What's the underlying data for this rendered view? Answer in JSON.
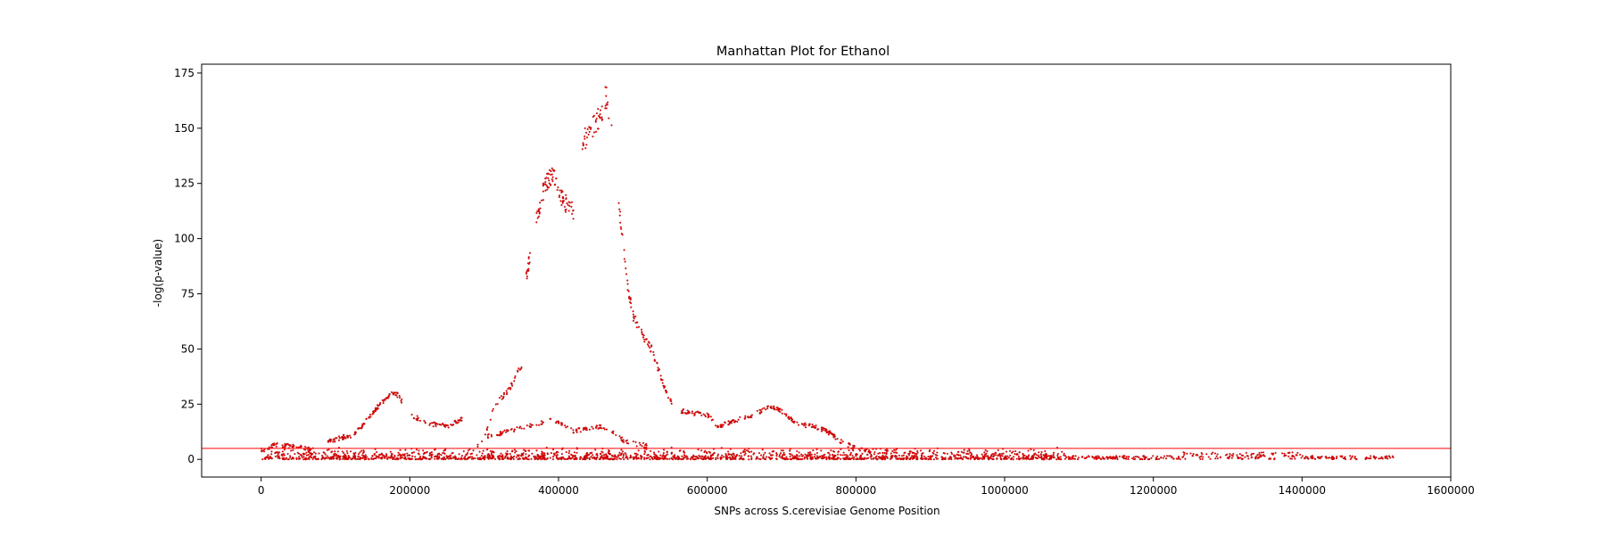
{
  "chart_data": {
    "type": "scatter",
    "title": "Manhattan Plot for Ethanol",
    "xlabel": "SNPs across S.cerevisiae Genome Position",
    "ylabel": "-log(p-value)",
    "xlim": [
      -80000,
      1600000
    ],
    "ylim": [
      -8,
      179
    ],
    "xticks": [
      0,
      200000,
      400000,
      600000,
      800000,
      1000000,
      1200000,
      1400000,
      1600000
    ],
    "yticks": [
      0,
      25,
      50,
      75,
      100,
      125,
      150,
      175
    ],
    "threshold": 5,
    "grid": false,
    "point_color": "#ff0000",
    "point_edge_color": "#8b0000",
    "threshold_color": "#ff0000",
    "baseline_range": [
      0,
      1525000
    ],
    "peak_tracks": [
      {
        "x": [
          0,
          20000,
          40000,
          60000,
          70000
        ],
        "y": [
          4,
          6.5,
          6,
          5,
          4.5
        ],
        "n": 60
      },
      {
        "x": [
          90000,
          110000,
          125000,
          140000,
          160000,
          175000,
          185000,
          190000
        ],
        "y": [
          8,
          10,
          11,
          17,
          25,
          30,
          29,
          26
        ],
        "n": 120
      },
      {
        "x": [
          200000,
          215000,
          230000,
          250000,
          270000
        ],
        "y": [
          20,
          18,
          16,
          15,
          18
        ],
        "n": 60
      },
      {
        "x": [
          290000,
          300000,
          315000,
          335000,
          345000,
          355000
        ],
        "y": [
          5,
          10,
          25,
          32,
          40,
          45
        ],
        "n": 40
      },
      {
        "x": [
          355000,
          362000
        ],
        "y": [
          80,
          92
        ],
        "n": 14
      },
      {
        "x": [
          370000,
          380000,
          392000,
          405000,
          420000
        ],
        "y": [
          108,
          122,
          130,
          118,
          112
        ],
        "n": 90
      },
      {
        "x": [
          432000,
          445000,
          455000,
          465000,
          472000
        ],
        "y": [
          143,
          150,
          155,
          165,
          150
        ],
        "n": 50
      },
      {
        "x": [
          480000,
          486000,
          492000,
          500000,
          512000,
          525000,
          535000,
          545000,
          552000
        ],
        "y": [
          118,
          100,
          80,
          65,
          57,
          50,
          40,
          30,
          26
        ],
        "n": 90
      },
      {
        "x": [
          300000,
          360000,
          390000,
          420000,
          460000,
          490000,
          520000
        ],
        "y": [
          10,
          15,
          18,
          13,
          15,
          8,
          6
        ],
        "n": 130
      },
      {
        "x": [
          565000,
          580000,
          600000,
          615000,
          640000,
          660000,
          685000,
          700000,
          720000,
          740000,
          760000,
          780000,
          800000,
          820000
        ],
        "y": [
          22,
          21,
          20,
          15,
          18,
          20,
          24,
          22,
          16,
          15,
          13,
          8,
          5,
          4
        ],
        "n": 220
      }
    ]
  }
}
